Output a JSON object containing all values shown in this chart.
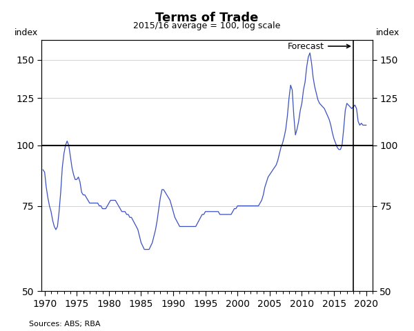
{
  "title": "Terms of Trade",
  "subtitle": "2015/16 average = 100, log scale",
  "ylabel_left": "index",
  "ylabel_right": "index",
  "source": "Sources: ABS; RBA",
  "forecast_label": "Forecast",
  "forecast_year": 2018.0,
  "yticks": [
    50,
    75,
    100,
    125,
    150
  ],
  "xticks": [
    1970,
    1975,
    1980,
    1985,
    1990,
    1995,
    2000,
    2005,
    2010,
    2015,
    2020
  ],
  "xlim": [
    1969.5,
    2021.0
  ],
  "ylim_log": [
    50,
    165
  ],
  "line_color": "#3A4FC0",
  "hline_color": "black",
  "hline_y": 100,
  "vline_color": "black",
  "background_color": "#ffffff",
  "data": [
    [
      1969.75,
      89
    ],
    [
      1970.0,
      88
    ],
    [
      1970.25,
      82
    ],
    [
      1970.5,
      78
    ],
    [
      1970.75,
      75
    ],
    [
      1971.0,
      73
    ],
    [
      1971.25,
      70
    ],
    [
      1971.5,
      68
    ],
    [
      1971.75,
      67
    ],
    [
      1972.0,
      68
    ],
    [
      1972.25,
      73
    ],
    [
      1972.5,
      80
    ],
    [
      1972.75,
      90
    ],
    [
      1973.0,
      96
    ],
    [
      1973.25,
      100
    ],
    [
      1973.5,
      102
    ],
    [
      1973.75,
      100
    ],
    [
      1974.0,
      95
    ],
    [
      1974.25,
      90
    ],
    [
      1974.5,
      87
    ],
    [
      1974.75,
      85
    ],
    [
      1975.0,
      85
    ],
    [
      1975.25,
      86
    ],
    [
      1975.5,
      84
    ],
    [
      1975.75,
      80
    ],
    [
      1976.0,
      79
    ],
    [
      1976.25,
      79
    ],
    [
      1976.5,
      78
    ],
    [
      1976.75,
      77
    ],
    [
      1977.0,
      76
    ],
    [
      1977.25,
      76
    ],
    [
      1977.5,
      76
    ],
    [
      1977.75,
      76
    ],
    [
      1978.0,
      76
    ],
    [
      1978.25,
      76
    ],
    [
      1978.5,
      75
    ],
    [
      1978.75,
      75
    ],
    [
      1979.0,
      74
    ],
    [
      1979.25,
      74
    ],
    [
      1979.5,
      74
    ],
    [
      1979.75,
      75
    ],
    [
      1980.0,
      76
    ],
    [
      1980.25,
      77
    ],
    [
      1980.5,
      77
    ],
    [
      1980.75,
      77
    ],
    [
      1981.0,
      77
    ],
    [
      1981.25,
      76
    ],
    [
      1981.5,
      75
    ],
    [
      1981.75,
      74
    ],
    [
      1982.0,
      73
    ],
    [
      1982.25,
      73
    ],
    [
      1982.5,
      73
    ],
    [
      1982.75,
      72
    ],
    [
      1983.0,
      72
    ],
    [
      1983.25,
      71
    ],
    [
      1983.5,
      71
    ],
    [
      1983.75,
      70
    ],
    [
      1984.0,
      69
    ],
    [
      1984.25,
      68
    ],
    [
      1984.5,
      67
    ],
    [
      1984.75,
      65
    ],
    [
      1985.0,
      63
    ],
    [
      1985.25,
      62
    ],
    [
      1985.5,
      61
    ],
    [
      1985.75,
      61
    ],
    [
      1986.0,
      61
    ],
    [
      1986.25,
      61
    ],
    [
      1986.5,
      62
    ],
    [
      1986.75,
      63
    ],
    [
      1987.0,
      65
    ],
    [
      1987.25,
      67
    ],
    [
      1987.5,
      70
    ],
    [
      1987.75,
      74
    ],
    [
      1988.0,
      78
    ],
    [
      1988.25,
      81
    ],
    [
      1988.5,
      81
    ],
    [
      1988.75,
      80
    ],
    [
      1989.0,
      79
    ],
    [
      1989.25,
      78
    ],
    [
      1989.5,
      77
    ],
    [
      1989.75,
      75
    ],
    [
      1990.0,
      73
    ],
    [
      1990.25,
      71
    ],
    [
      1990.5,
      70
    ],
    [
      1990.75,
      69
    ],
    [
      1991.0,
      68
    ],
    [
      1991.25,
      68
    ],
    [
      1991.5,
      68
    ],
    [
      1991.75,
      68
    ],
    [
      1992.0,
      68
    ],
    [
      1992.25,
      68
    ],
    [
      1992.5,
      68
    ],
    [
      1992.75,
      68
    ],
    [
      1993.0,
      68
    ],
    [
      1993.25,
      68
    ],
    [
      1993.5,
      68
    ],
    [
      1993.75,
      69
    ],
    [
      1994.0,
      70
    ],
    [
      1994.25,
      71
    ],
    [
      1994.5,
      72
    ],
    [
      1994.75,
      72
    ],
    [
      1995.0,
      73
    ],
    [
      1995.25,
      73
    ],
    [
      1995.5,
      73
    ],
    [
      1995.75,
      73
    ],
    [
      1996.0,
      73
    ],
    [
      1996.25,
      73
    ],
    [
      1996.5,
      73
    ],
    [
      1996.75,
      73
    ],
    [
      1997.0,
      73
    ],
    [
      1997.25,
      72
    ],
    [
      1997.5,
      72
    ],
    [
      1997.75,
      72
    ],
    [
      1998.0,
      72
    ],
    [
      1998.25,
      72
    ],
    [
      1998.5,
      72
    ],
    [
      1998.75,
      72
    ],
    [
      1999.0,
      72
    ],
    [
      1999.25,
      73
    ],
    [
      1999.5,
      74
    ],
    [
      1999.75,
      74
    ],
    [
      2000.0,
      75
    ],
    [
      2000.25,
      75
    ],
    [
      2000.5,
      75
    ],
    [
      2000.75,
      75
    ],
    [
      2001.0,
      75
    ],
    [
      2001.25,
      75
    ],
    [
      2001.5,
      75
    ],
    [
      2001.75,
      75
    ],
    [
      2002.0,
      75
    ],
    [
      2002.25,
      75
    ],
    [
      2002.5,
      75
    ],
    [
      2002.75,
      75
    ],
    [
      2003.0,
      75
    ],
    [
      2003.25,
      75
    ],
    [
      2003.5,
      76
    ],
    [
      2003.75,
      77
    ],
    [
      2004.0,
      79
    ],
    [
      2004.25,
      82
    ],
    [
      2004.5,
      84
    ],
    [
      2004.75,
      86
    ],
    [
      2005.0,
      87
    ],
    [
      2005.25,
      88
    ],
    [
      2005.5,
      89
    ],
    [
      2005.75,
      90
    ],
    [
      2006.0,
      91
    ],
    [
      2006.25,
      93
    ],
    [
      2006.5,
      96
    ],
    [
      2006.75,
      99
    ],
    [
      2007.0,
      101
    ],
    [
      2007.25,
      104
    ],
    [
      2007.5,
      108
    ],
    [
      2007.75,
      115
    ],
    [
      2008.0,
      125
    ],
    [
      2008.25,
      133
    ],
    [
      2008.5,
      130
    ],
    [
      2008.75,
      115
    ],
    [
      2009.0,
      105
    ],
    [
      2009.25,
      108
    ],
    [
      2009.5,
      112
    ],
    [
      2009.75,
      118
    ],
    [
      2010.0,
      122
    ],
    [
      2010.25,
      130
    ],
    [
      2010.5,
      135
    ],
    [
      2010.75,
      145
    ],
    [
      2011.0,
      152
    ],
    [
      2011.25,
      155
    ],
    [
      2011.5,
      148
    ],
    [
      2011.75,
      138
    ],
    [
      2012.0,
      132
    ],
    [
      2012.25,
      128
    ],
    [
      2012.5,
      124
    ],
    [
      2012.75,
      122
    ],
    [
      2013.0,
      121
    ],
    [
      2013.25,
      120
    ],
    [
      2013.5,
      119
    ],
    [
      2013.75,
      117
    ],
    [
      2014.0,
      115
    ],
    [
      2014.25,
      113
    ],
    [
      2014.5,
      110
    ],
    [
      2014.75,
      106
    ],
    [
      2015.0,
      103
    ],
    [
      2015.25,
      101
    ],
    [
      2015.5,
      99
    ],
    [
      2015.75,
      98
    ],
    [
      2016.0,
      98
    ],
    [
      2016.25,
      100
    ],
    [
      2016.5,
      108
    ],
    [
      2016.75,
      118
    ],
    [
      2017.0,
      122
    ],
    [
      2017.25,
      121
    ],
    [
      2017.5,
      120
    ],
    [
      2017.75,
      119
    ],
    [
      2018.0,
      120
    ],
    [
      2018.25,
      121
    ],
    [
      2018.5,
      119
    ],
    [
      2018.75,
      112
    ],
    [
      2019.0,
      110
    ],
    [
      2019.25,
      111
    ],
    [
      2019.5,
      110
    ],
    [
      2019.75,
      110
    ],
    [
      2020.0,
      110
    ]
  ]
}
